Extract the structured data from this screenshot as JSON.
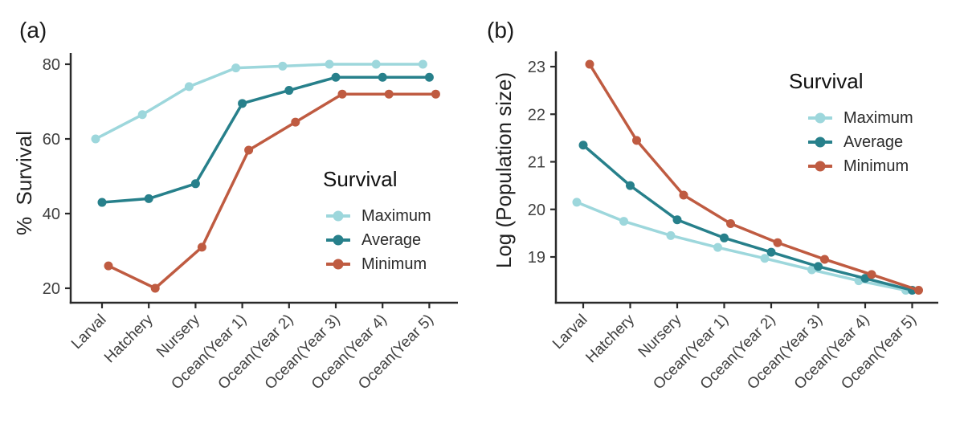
{
  "chart_data": [
    {
      "type": "line",
      "panel_label": "(a)",
      "ylabel": "%  Survival",
      "xlabel": "",
      "categories": [
        "Larval",
        "Hatchery",
        "Nursery",
        "Ocean(Year 1)",
        "Ocean(Year 2)",
        "Ocean(Year 3)",
        "Ocean(Year 4)",
        "Ocean(Year 5)"
      ],
      "yticks": [
        20,
        40,
        60,
        80
      ],
      "ylim": [
        16,
        82
      ],
      "grid": false,
      "legend": {
        "title": "Survival",
        "position": "inside-right"
      },
      "series": [
        {
          "name": "Maximum",
          "color": "#9DD7DC",
          "values": [
            60,
            66.5,
            74,
            79,
            79.5,
            80,
            80,
            80
          ]
        },
        {
          "name": "Average",
          "color": "#27808B",
          "values": [
            43,
            44,
            48,
            69.5,
            73,
            76.5,
            76.5,
            76.5
          ]
        },
        {
          "name": "Minimum",
          "color": "#BF5B41",
          "values": [
            26,
            20,
            31,
            57,
            64.5,
            72,
            72,
            72
          ]
        }
      ]
    },
    {
      "type": "line",
      "panel_label": "(b)",
      "ylabel": "Log (Population size)",
      "xlabel": "",
      "categories": [
        "Larval",
        "Hatchery",
        "Nursery",
        "Ocean(Year 1)",
        "Ocean(Year 2)",
        "Ocean(Year 3)",
        "Ocean(Year 4)",
        "Ocean(Year 5)"
      ],
      "yticks": [
        19,
        20,
        21,
        22,
        23
      ],
      "ylim": [
        18.05,
        23.3
      ],
      "grid": false,
      "legend": {
        "title": "Survival",
        "position": "inside-right"
      },
      "series": [
        {
          "name": "Maximum",
          "color": "#9DD7DC",
          "values": [
            20.15,
            19.75,
            19.45,
            19.2,
            18.97,
            18.73,
            18.5,
            18.3
          ]
        },
        {
          "name": "Average",
          "color": "#27808B",
          "values": [
            21.35,
            20.5,
            19.78,
            19.4,
            19.1,
            18.8,
            18.55,
            18.3
          ]
        },
        {
          "name": "Minimum",
          "color": "#BF5B41",
          "values": [
            23.05,
            21.45,
            20.3,
            19.7,
            19.3,
            18.95,
            18.63,
            18.3
          ]
        }
      ]
    }
  ],
  "style": {
    "background": "#ffffff",
    "axis_color": "#2a2a2a",
    "tick_label_color": "#3f3f3f"
  }
}
